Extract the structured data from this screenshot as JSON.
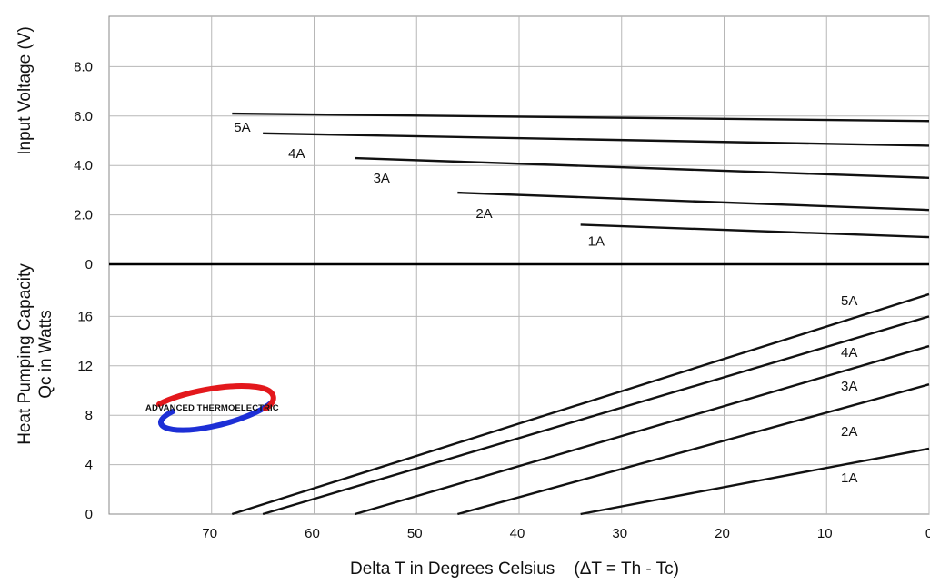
{
  "chart_data": [
    {
      "type": "line",
      "ylabel": "Input Voltage (V)",
      "xlim": [
        80,
        0
      ],
      "ylim": [
        0,
        10
      ],
      "yticks": [
        0,
        2.0,
        4.0,
        6.0,
        8.0
      ],
      "ytick_labels": [
        "0",
        "2.0",
        "4.0",
        "6.0",
        "8.0"
      ],
      "grid": true,
      "series": [
        {
          "name": "5A",
          "x": [
            68,
            0
          ],
          "y": [
            6.1,
            5.8
          ]
        },
        {
          "name": "4A",
          "x": [
            65,
            0
          ],
          "y": [
            5.3,
            4.8
          ]
        },
        {
          "name": "3A",
          "x": [
            56,
            0
          ],
          "y": [
            4.3,
            3.5
          ]
        },
        {
          "name": "2A",
          "x": [
            46,
            0
          ],
          "y": [
            2.9,
            2.2
          ]
        },
        {
          "name": "1A",
          "x": [
            34,
            0
          ],
          "y": [
            1.6,
            1.1
          ]
        }
      ]
    },
    {
      "type": "line",
      "ylabel": "Heat Pumping Capacity\nQc in Watts",
      "xlabel": "Delta T in Degrees Celsius    (ΔT = Th - Tc)",
      "xlim": [
        80,
        0
      ],
      "ylim": [
        0,
        20
      ],
      "xticks": [
        70,
        60,
        50,
        40,
        30,
        20,
        10,
        0
      ],
      "xtick_labels": [
        "70",
        "60",
        "50",
        "40",
        "30",
        "20",
        "10",
        "0"
      ],
      "yticks": [
        0,
        4,
        8,
        12,
        16
      ],
      "ytick_labels": [
        "0",
        "4",
        "8",
        "12",
        "16"
      ],
      "grid": true,
      "series": [
        {
          "name": "5A",
          "x": [
            68,
            0
          ],
          "y": [
            0,
            17.8
          ]
        },
        {
          "name": "4A",
          "x": [
            65,
            0
          ],
          "y": [
            0,
            16.0
          ]
        },
        {
          "name": "3A",
          "x": [
            56,
            0
          ],
          "y": [
            0,
            13.6
          ]
        },
        {
          "name": "2A",
          "x": [
            46,
            0
          ],
          "y": [
            0,
            10.5
          ]
        },
        {
          "name": "1A",
          "x": [
            34,
            0
          ],
          "y": [
            0,
            5.3
          ]
        }
      ]
    }
  ],
  "logo": {
    "text": "ADVANCED THERMOELECTRIC",
    "colors": {
      "red": "#e3181c",
      "blue": "#1d2fd6",
      "purple": "#7a2a8c"
    }
  },
  "colors": {
    "lines": "#111111",
    "grid": "#b7b7b7"
  }
}
